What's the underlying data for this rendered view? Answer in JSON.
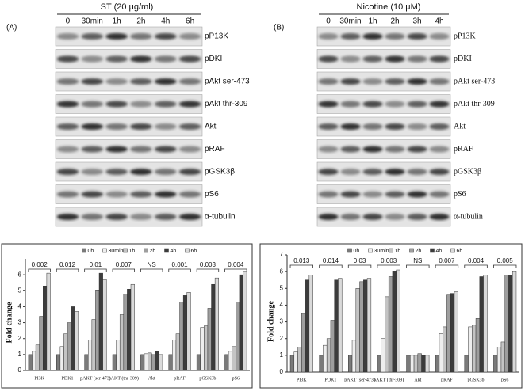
{
  "blots": [
    {
      "panel": "(A)",
      "title": "ST (20 μg/ml)",
      "timepoints": [
        "0",
        "30min",
        "1h",
        "2h",
        "4h",
        "6h"
      ],
      "proteins": [
        "pP13K",
        "pDKI",
        "pAkt ser-473",
        "pAkt thr-309",
        "Akt",
        "pRAF",
        "pGSK3β",
        "pS6",
        "α-tubulin"
      ]
    },
    {
      "panel": "(B)",
      "title": "Nicotine (10 μM)",
      "timepoints": [
        "0",
        "30min",
        "1h",
        "2h",
        "3h",
        "4h"
      ],
      "proteins": [
        "pP13K",
        "pDKI",
        "pAkt ser-473",
        "pAkt thr-309",
        "Akt",
        "pRAF",
        "pGSK3β",
        "pS6",
        "α-tubulin"
      ]
    }
  ],
  "chart_data": [
    {
      "type": "bar",
      "ylabel": "Fold change",
      "ylim": [
        0,
        7
      ],
      "yticks": [
        0,
        1,
        2,
        3,
        4,
        5,
        6
      ],
      "categories": [
        "PI3K",
        "PDK1",
        "pAKT (ser-473)",
        "pAKT (thr-309)",
        "Akt",
        "pRAF",
        "pGSK3b",
        "pS6"
      ],
      "annotations": [
        "0.002",
        "0.012",
        "0.01",
        "0.007",
        "NS",
        "0.001",
        "0.003",
        "0.004"
      ],
      "series": [
        {
          "name": "0h",
          "color": "#7a7a7a",
          "values": [
            1.0,
            1.0,
            1.0,
            1.0,
            1.0,
            1.0,
            1.0,
            1.0
          ]
        },
        {
          "name": "30min",
          "color": "#eeeeee",
          "values": [
            1.2,
            1.5,
            1.9,
            1.9,
            1.05,
            1.9,
            2.7,
            1.2
          ]
        },
        {
          "name": "1h",
          "color": "#c4c4c4",
          "values": [
            1.6,
            2.3,
            3.2,
            3.5,
            1.1,
            2.3,
            2.8,
            1.5
          ]
        },
        {
          "name": "2h",
          "color": "#9e9e9e",
          "values": [
            3.4,
            3.0,
            5.0,
            4.8,
            1.0,
            4.3,
            3.9,
            4.3
          ]
        },
        {
          "name": "4h",
          "color": "#3c3c3c",
          "values": [
            5.3,
            4.0,
            6.1,
            5.1,
            1.2,
            4.7,
            5.4,
            6.0
          ]
        },
        {
          "name": "6h",
          "color": "#dadada",
          "values": [
            6.1,
            3.7,
            5.7,
            5.4,
            1.0,
            4.9,
            5.8,
            6.2
          ]
        }
      ]
    },
    {
      "type": "bar",
      "ylabel": "Fold change",
      "ylim": [
        0,
        7
      ],
      "yticks": [
        0,
        1,
        2,
        3,
        4,
        5,
        6,
        7
      ],
      "categories": [
        "PI3K",
        "PDK1",
        "pAKT (ser-473)",
        "pAKT (thr-309)",
        "Akt",
        "pRAF",
        "pGSK3b",
        "pS6"
      ],
      "annotations": [
        "0.013",
        "0.014",
        "0.03",
        "0.003",
        "NS",
        "0.007",
        "0.004",
        "0.005"
      ],
      "series": [
        {
          "name": "0h",
          "color": "#7a7a7a",
          "values": [
            1.0,
            1.0,
            1.0,
            1.0,
            1.0,
            1.0,
            1.0,
            1.0
          ]
        },
        {
          "name": "30min",
          "color": "#eeeeee",
          "values": [
            1.2,
            1.6,
            1.9,
            2.0,
            1.0,
            2.3,
            2.7,
            1.5
          ]
        },
        {
          "name": "1h",
          "color": "#c4c4c4",
          "values": [
            1.5,
            2.0,
            5.0,
            4.5,
            1.0,
            2.7,
            2.8,
            1.8
          ]
        },
        {
          "name": "2h",
          "color": "#9e9e9e",
          "values": [
            3.5,
            3.1,
            5.4,
            5.7,
            1.1,
            4.6,
            3.2,
            5.8
          ]
        },
        {
          "name": "4h",
          "color": "#3c3c3c",
          "values": [
            5.5,
            5.5,
            5.5,
            6.0,
            1.0,
            4.7,
            5.7,
            5.8
          ]
        },
        {
          "name": "6h",
          "color": "#dadada",
          "values": [
            5.8,
            5.6,
            5.6,
            6.1,
            1.0,
            4.8,
            5.8,
            6.0
          ]
        }
      ]
    }
  ]
}
